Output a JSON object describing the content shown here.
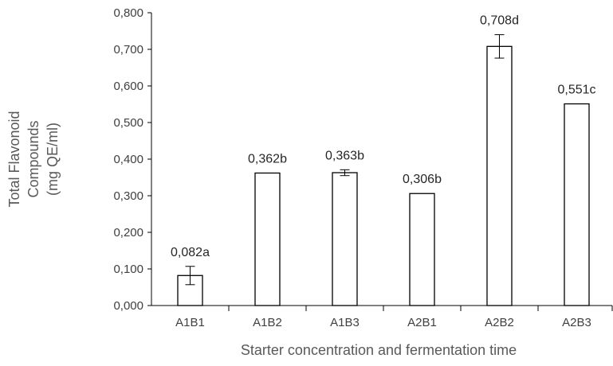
{
  "chart_data": {
    "type": "bar",
    "categories": [
      "A1B1",
      "A1B2",
      "A1B3",
      "A2B1",
      "A2B2",
      "A2B3"
    ],
    "values": [
      0.082,
      0.362,
      0.363,
      0.306,
      0.708,
      0.551
    ],
    "error": [
      0.025,
      0,
      0.008,
      0,
      0.032,
      0
    ],
    "data_labels": [
      "0,082a",
      "0,362b",
      "0,363b",
      "0,306b",
      "0,708d",
      "0,551c"
    ],
    "y_tick_labels": [
      "0,000",
      "0,100",
      "0,200",
      "0,300",
      "0,400",
      "0,500",
      "0,600",
      "0,700",
      "0,800"
    ],
    "y_ticks": [
      0,
      0.1,
      0.2,
      0.3,
      0.4,
      0.5,
      0.6,
      0.7,
      0.8
    ],
    "ylim": [
      0,
      0.8
    ],
    "xlabel": "Starter concentration and fermentation time",
    "ylabel_lines": [
      "Total Flavonoid",
      "Compounds",
      "(mg QE/ml)"
    ],
    "title": "",
    "grid": false,
    "bar_fill": "#ffffff",
    "bar_stroke": "#000000"
  }
}
